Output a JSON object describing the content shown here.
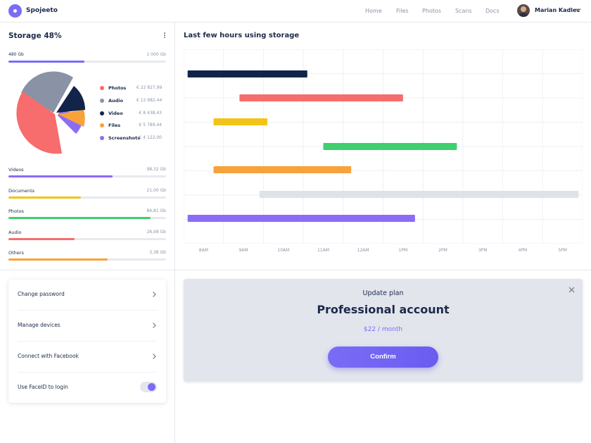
{
  "header": {
    "brand": "Spojeeto",
    "nav": [
      "Home",
      "Files",
      "Photos",
      "Scans",
      "Docs"
    ],
    "user_name": "Marian Kadlec"
  },
  "storage": {
    "title": "Storage 48%",
    "used_label": "480 Gb",
    "total_label": "1 000 Gb",
    "used_fraction": 0.48,
    "legend": [
      {
        "label": "Photos",
        "value": "€ 22 827,99",
        "color": "#f76c6c"
      },
      {
        "label": "Audio",
        "value": "€ 12 982,44",
        "color": "#8a93a6"
      },
      {
        "label": "Video",
        "value": "€ 8 438,43",
        "color": "#12244a"
      },
      {
        "label": "Files",
        "value": "€ 5 789,44",
        "color": "#f7a23b"
      },
      {
        "label": "Screenshots",
        "value": "€ 4 122,00",
        "color": "#8b6cf6"
      }
    ],
    "categories": [
      {
        "label": "Videos",
        "value": "98,32 Gb",
        "fill": 0.66,
        "color": "#8b6cf6"
      },
      {
        "label": "Documents",
        "value": "21,00 Gb",
        "fill": 0.46,
        "color": "#f2c418"
      },
      {
        "label": "Photos",
        "value": "84,81 Gb",
        "fill": 0.9,
        "color": "#3ecf6e"
      },
      {
        "label": "Audio",
        "value": "28,98 Gb",
        "fill": 0.42,
        "color": "#f76c6c"
      },
      {
        "label": "Others",
        "value": "3,38 Gb",
        "fill": 0.63,
        "color": "#f7a23b"
      }
    ]
  },
  "chart_data": {
    "type": "bar",
    "title": "Last few hours using storage",
    "x_ticks": [
      "8AM",
      "9AM",
      "10AM",
      "11AM",
      "12AM",
      "1PM",
      "2PM",
      "3PM",
      "4PM",
      "5PM"
    ],
    "xlim": [
      7.5,
      17.5
    ],
    "series": [
      {
        "start": 7.6,
        "end": 10.6,
        "color": "#12244a"
      },
      {
        "start": 8.9,
        "end": 13.0,
        "color": "#f76c6c"
      },
      {
        "start": 8.25,
        "end": 9.6,
        "color": "#f2c418"
      },
      {
        "start": 11.0,
        "end": 14.35,
        "color": "#3ecf6e"
      },
      {
        "start": 8.25,
        "end": 11.7,
        "color": "#f7a23b"
      },
      {
        "start": 9.4,
        "end": 17.4,
        "color": "#dfe2e8"
      },
      {
        "start": 7.6,
        "end": 13.3,
        "color": "#8b6cf6"
      }
    ],
    "grid": true
  },
  "settings": [
    {
      "label": "Change password",
      "control": "chevron-right-icon"
    },
    {
      "label": "Manage devices",
      "control": "chevron-right-icon"
    },
    {
      "label": "Connect with Facebook",
      "control": "chevron-right-icon"
    },
    {
      "label": "Use FaceID to login",
      "control": "toggle",
      "enabled": true
    }
  ],
  "plan": {
    "subtitle": "Update plan",
    "title": "Professional account",
    "price": "$22 / month",
    "confirm_label": "Confirm"
  },
  "colors": {
    "accent": "#7b6cf6",
    "text": "#1b2a4a",
    "muted": "#8a93a6"
  }
}
